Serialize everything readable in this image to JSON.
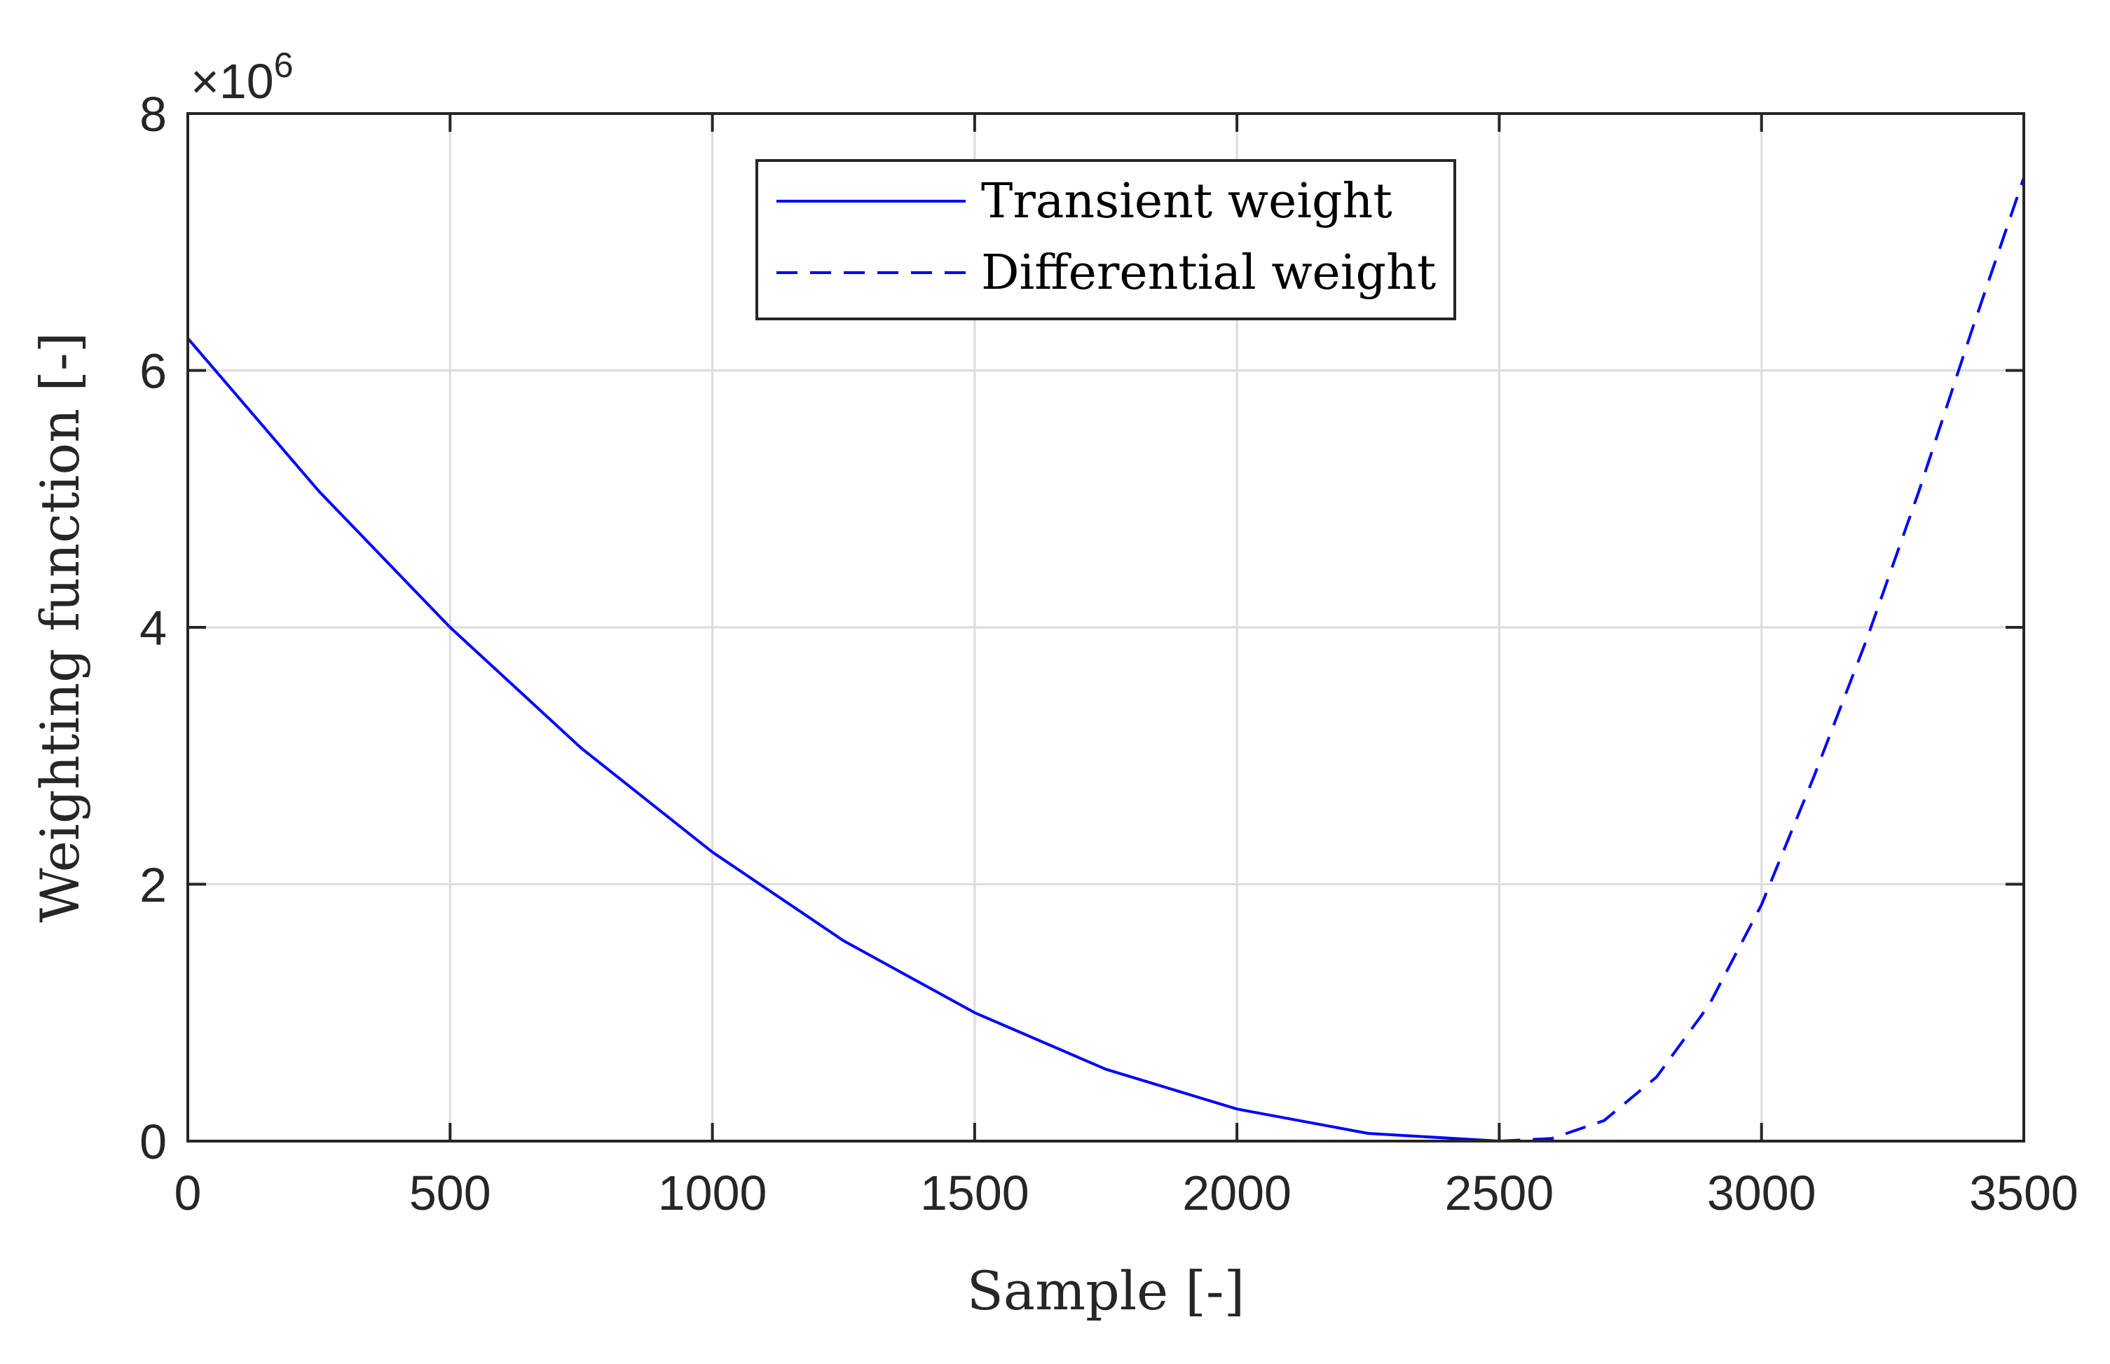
{
  "chart_data": {
    "type": "line",
    "title": "",
    "xlabel": "Sample [-]",
    "ylabel": "Weighting function [-]",
    "xlim": [
      0,
      3500
    ],
    "ylim": [
      0,
      8
    ],
    "y_scale_exponent": {
      "base": "×10",
      "power": "6"
    },
    "x_ticks": [
      0,
      500,
      1000,
      1500,
      2000,
      2500,
      3000,
      3500
    ],
    "x_tick_labels": [
      "0",
      "500",
      "1000",
      "1500",
      "2000",
      "2500",
      "3000",
      "3500"
    ],
    "y_ticks": [
      0,
      2,
      4,
      6,
      8
    ],
    "y_tick_labels": [
      "0",
      "2",
      "4",
      "6",
      "8"
    ],
    "grid": true,
    "legend_position": "top-center",
    "series": [
      {
        "name": "Transient weight",
        "style": "solid",
        "color": "#0000ff",
        "x": [
          0,
          250,
          500,
          750,
          1000,
          1250,
          1500,
          1750,
          2000,
          2250,
          2500
        ],
        "y": [
          6.25,
          5.06,
          4.0,
          3.06,
          2.25,
          1.56,
          1.0,
          0.56,
          0.25,
          0.06,
          0.0
        ]
      },
      {
        "name": "Differential weight",
        "style": "dashed",
        "color": "#0000ff",
        "x": [
          2500,
          2600,
          2700,
          2800,
          2900,
          3000,
          3100,
          3200,
          3300,
          3400,
          3500
        ],
        "y": [
          0.0,
          0.02,
          0.16,
          0.5,
          1.06,
          1.84,
          2.84,
          3.9,
          5.06,
          6.3,
          7.5
        ]
      }
    ]
  }
}
